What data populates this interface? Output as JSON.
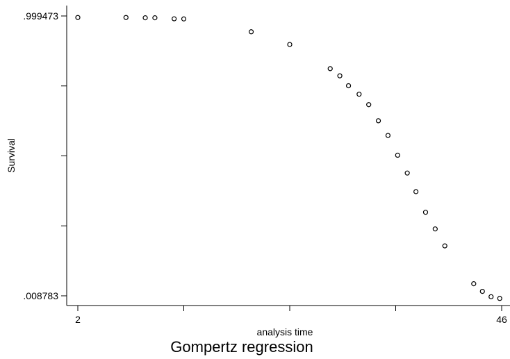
{
  "chart_data": {
    "type": "scatter",
    "title": "",
    "caption": "Gompertz regression",
    "xlabel": "analysis time",
    "ylabel": "Survival",
    "xlim": [
      2,
      46
    ],
    "ylim": [
      0.008783,
      0.999473
    ],
    "x_tick_labels": [
      {
        "value": 2,
        "label": "2"
      },
      {
        "value": 46,
        "label": "46"
      }
    ],
    "x_minor_ticks": [
      13,
      24,
      35
    ],
    "y_tick_labels": [
      {
        "value": 0.999473,
        "label": ".999473"
      },
      {
        "value": 0.008783,
        "label": ".008783"
      }
    ],
    "y_minor_ticks": [
      0.751801,
      0.504128,
      0.256456
    ],
    "marker": "hollow-circle",
    "grid": false,
    "legend": "none",
    "series": [
      {
        "x": [
          2,
          7,
          9,
          10,
          12,
          13,
          20,
          24,
          28.2,
          29.2,
          30.1,
          31.2,
          32.2,
          33.2,
          34.2,
          35.2,
          36.2,
          37.1,
          38.1,
          39.1,
          40.1,
          43.1,
          44.0,
          44.9,
          45.8
        ],
        "y": [
          0.994,
          0.994,
          0.993,
          0.993,
          0.9895,
          0.989,
          0.9435,
          0.8985,
          0.813,
          0.7875,
          0.7525,
          0.7225,
          0.6855,
          0.6285,
          0.5765,
          0.5065,
          0.4435,
          0.3775,
          0.3045,
          0.2455,
          0.1855,
          0.0515,
          0.0245,
          0.0055,
          -0.0005
        ]
      }
    ]
  }
}
